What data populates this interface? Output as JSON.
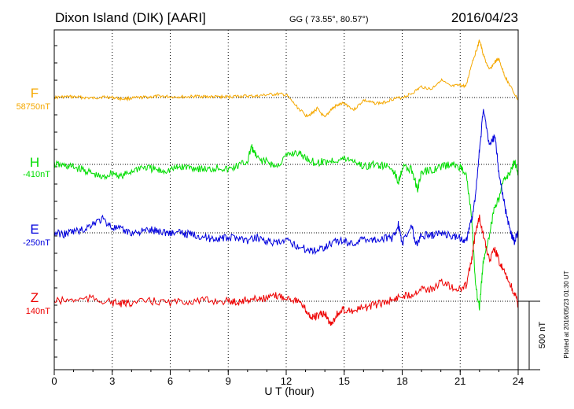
{
  "header": {
    "station": "Dixon Island (DIK)  [AARI]",
    "coords": "GG ( 73.55°,  80.57°)",
    "date": "2016/04/23"
  },
  "footer": {
    "plotted": "Plotted at 2016/05/23 01:30 UT",
    "scale_label": "500 nT"
  },
  "chart_data": {
    "type": "line",
    "xlabel": "U T (hour)",
    "xlim": [
      0,
      24
    ],
    "xticks": [
      "0",
      "3",
      "6",
      "9",
      "12",
      "15",
      "18",
      "21",
      "24"
    ],
    "y_units": "nT",
    "scale_bar_nT": 500,
    "grid": true,
    "series": [
      {
        "name": "F",
        "baseline_label": "58750nT",
        "color": "#f5a800",
        "x": [
          0,
          0.5,
          1,
          1.5,
          2,
          2.5,
          3,
          3.5,
          4,
          4.5,
          5,
          5.5,
          6,
          6.5,
          7,
          7.5,
          8,
          8.5,
          9,
          9.5,
          10,
          10.5,
          11,
          11.5,
          12,
          12.5,
          13,
          13.3,
          13.6,
          14,
          14.3,
          14.6,
          15,
          15.5,
          16,
          16.5,
          17,
          17.5,
          18,
          18.5,
          19,
          19.5,
          20,
          20.5,
          21,
          21.3,
          21.6,
          21.9,
          22,
          22.2,
          22.5,
          22.8,
          23,
          23.3,
          23.6,
          24
        ],
        "y": [
          0,
          5,
          5,
          0,
          -5,
          5,
          0,
          -10,
          -5,
          0,
          5,
          10,
          5,
          5,
          5,
          10,
          5,
          5,
          5,
          10,
          10,
          10,
          20,
          25,
          20,
          -60,
          -130,
          -120,
          -80,
          -150,
          -90,
          -60,
          -40,
          -90,
          -20,
          -40,
          -40,
          -10,
          0,
          30,
          80,
          60,
          130,
          80,
          90,
          80,
          250,
          370,
          420,
          310,
          200,
          260,
          280,
          160,
          80,
          -20
        ]
      },
      {
        "name": "H",
        "baseline_label": "-410nT",
        "color": "#00dd00",
        "x": [
          0,
          0.5,
          1,
          1.5,
          2,
          2.5,
          3,
          3.5,
          4,
          4.5,
          5,
          5.5,
          6,
          6.5,
          7,
          7.5,
          8,
          8.5,
          9,
          9.5,
          10,
          10.2,
          10.5,
          11,
          11.5,
          12,
          12.5,
          13,
          13.5,
          14,
          14.5,
          15,
          15.5,
          16,
          16.5,
          17,
          17.5,
          17.8,
          18,
          18.5,
          18.8,
          19,
          19.5,
          20,
          20.5,
          21,
          21.3,
          21.6,
          21.8,
          22,
          22.2,
          22.5,
          22.8,
          23,
          23.3,
          23.6,
          23.8,
          24
        ],
        "y": [
          0,
          -10,
          -20,
          -40,
          -70,
          -100,
          -60,
          -90,
          -50,
          -20,
          -30,
          -50,
          -40,
          -20,
          -20,
          -30,
          -40,
          -20,
          -40,
          -10,
          20,
          130,
          40,
          20,
          -20,
          60,
          90,
          50,
          10,
          20,
          30,
          40,
          30,
          -20,
          0,
          -10,
          -30,
          -130,
          -20,
          -40,
          -180,
          -60,
          -40,
          -20,
          0,
          -20,
          -60,
          -400,
          -900,
          -1050,
          -700,
          -520,
          -300,
          -250,
          -100,
          -60,
          30,
          -70
        ]
      },
      {
        "name": "E",
        "baseline_label": "-250nT",
        "color": "#0000dd",
        "x": [
          0,
          0.5,
          1,
          1.5,
          2,
          2.5,
          3,
          3.5,
          4,
          4.5,
          5,
          5.5,
          6,
          6.5,
          7,
          7.5,
          8,
          8.5,
          9,
          9.5,
          10,
          10.5,
          11,
          11.5,
          12,
          12.5,
          13,
          13.5,
          14,
          14.5,
          15,
          15.5,
          16,
          16.5,
          17,
          17.5,
          17.8,
          18,
          18.5,
          18.7,
          19,
          19.5,
          20,
          20.5,
          21,
          21.3,
          21.6,
          21.8,
          22,
          22.2,
          22.5,
          22.8,
          23,
          23.3,
          23.6,
          23.8,
          24
        ],
        "y": [
          0,
          -10,
          10,
          20,
          70,
          100,
          40,
          20,
          0,
          10,
          20,
          10,
          0,
          0,
          -10,
          -20,
          -40,
          -40,
          -40,
          -30,
          -60,
          -30,
          -60,
          -80,
          -60,
          -90,
          -120,
          -130,
          -100,
          -60,
          -60,
          -80,
          -40,
          -50,
          -40,
          -40,
          60,
          -80,
          60,
          -90,
          -20,
          -20,
          0,
          -20,
          -40,
          -60,
          100,
          280,
          600,
          900,
          650,
          700,
          450,
          200,
          0,
          -60,
          0
        ]
      },
      {
        "name": "Z",
        "baseline_label": "140nT",
        "color": "#ee0000",
        "x": [
          0,
          1,
          2,
          3,
          3.5,
          4,
          5,
          6,
          7,
          8,
          9,
          9.5,
          10,
          10.5,
          11,
          11.5,
          12,
          12.5,
          13,
          13.3,
          13.6,
          14,
          14.3,
          14.6,
          15,
          15.5,
          16,
          16.5,
          17,
          17.5,
          18,
          18.5,
          19,
          19.5,
          20,
          20.5,
          21,
          21.3,
          21.6,
          21.8,
          22,
          22.2,
          22.5,
          22.8,
          23,
          23.3,
          23.6,
          23.9,
          24
        ],
        "y": [
          0,
          10,
          20,
          -10,
          -20,
          -10,
          0,
          -10,
          0,
          5,
          0,
          -5,
          10,
          20,
          20,
          40,
          30,
          10,
          -60,
          -120,
          -110,
          -90,
          -170,
          -100,
          -60,
          -70,
          -50,
          -30,
          -10,
          10,
          40,
          50,
          100,
          80,
          140,
          110,
          80,
          120,
          300,
          520,
          620,
          480,
          300,
          380,
          300,
          200,
          120,
          20,
          -30
        ]
      }
    ]
  }
}
